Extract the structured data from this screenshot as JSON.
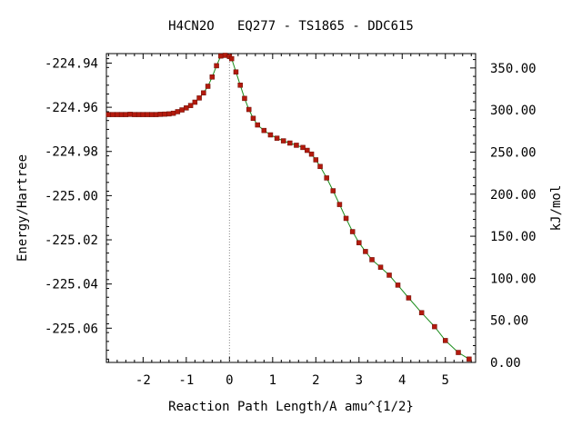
{
  "chart_data": {
    "type": "scatter",
    "title": "H4CN2O   EQ277 - TS1865 - DDC615",
    "xlabel": "Reaction Path Length/A amu^{1/2}",
    "ylabel": "Energy/Hartree",
    "y2label": "kJ/mol",
    "xlim": [
      -2.85,
      5.7
    ],
    "ylim": [
      -225.0755,
      -224.9357
    ],
    "y2lim": [
      0.0,
      367.1
    ],
    "x_ticks": [
      -2,
      -1,
      0,
      1,
      2,
      3,
      4,
      5
    ],
    "y_ticks": [
      -224.94,
      -224.96,
      -224.98,
      -225.0,
      -225.02,
      -225.04,
      -225.06
    ],
    "y2_ticks": [
      0.0,
      50.0,
      100.0,
      150.0,
      200.0,
      250.0,
      300.0,
      350.0
    ],
    "x_tick_labels": [
      "-2",
      "-1",
      "0",
      "1",
      "2",
      "3",
      "4",
      "5"
    ],
    "y_tick_labels": [
      "-224.94",
      "-224.96",
      "-224.98",
      "-225.00",
      "-225.02",
      "-225.04",
      "-225.06"
    ],
    "y2_tick_labels": [
      "0.00",
      "50.00",
      "100.00",
      "150.00",
      "200.00",
      "250.00",
      "300.00",
      "350.00"
    ],
    "ts_marker_x": 0.0,
    "grid": false,
    "series": [
      {
        "x": [
          -2.8,
          -2.7,
          -2.6,
          -2.5,
          -2.4,
          -2.3,
          -2.2,
          -2.1,
          -2.0,
          -1.9,
          -1.8,
          -1.7,
          -1.6,
          -1.5,
          -1.4,
          -1.3,
          -1.2,
          -1.1,
          -1.0,
          -0.9,
          -0.8,
          -0.7,
          -0.6,
          -0.5,
          -0.4,
          -0.3,
          -0.2,
          -0.1,
          0.0,
          0.05,
          0.15,
          0.25,
          0.35,
          0.45,
          0.55,
          0.65,
          0.8,
          0.95,
          1.1,
          1.25,
          1.4,
          1.55,
          1.7,
          1.8,
          1.9,
          2.0,
          2.1,
          2.25,
          2.4,
          2.55,
          2.7,
          2.85,
          3.0,
          3.15,
          3.3,
          3.5,
          3.7,
          3.9,
          4.15,
          4.45,
          4.75,
          5.0,
          5.3,
          5.55
        ],
        "y": [
          -224.9633,
          -224.9633,
          -224.9633,
          -224.9633,
          -224.9633,
          -224.9632,
          -224.9633,
          -224.9633,
          -224.9633,
          -224.9633,
          -224.9633,
          -224.9633,
          -224.9632,
          -224.9631,
          -224.963,
          -224.9627,
          -224.962,
          -224.9612,
          -224.9603,
          -224.9592,
          -224.9577,
          -224.9558,
          -224.9535,
          -224.9505,
          -224.9463,
          -224.9412,
          -224.9368,
          -224.9365,
          -224.937,
          -224.938,
          -224.944,
          -224.95,
          -224.956,
          -224.961,
          -224.965,
          -224.968,
          -224.9705,
          -224.9725,
          -224.974,
          -224.9752,
          -224.9762,
          -224.9772,
          -224.9782,
          -224.9795,
          -224.9812,
          -224.9838,
          -224.9868,
          -224.992,
          -224.9978,
          -225.004,
          -225.0103,
          -225.0163,
          -225.0213,
          -225.0253,
          -225.029,
          -225.0324,
          -225.036,
          -225.0405,
          -225.0463,
          -225.053,
          -225.0593,
          -225.0656,
          -225.071,
          -225.074
        ]
      }
    ]
  }
}
